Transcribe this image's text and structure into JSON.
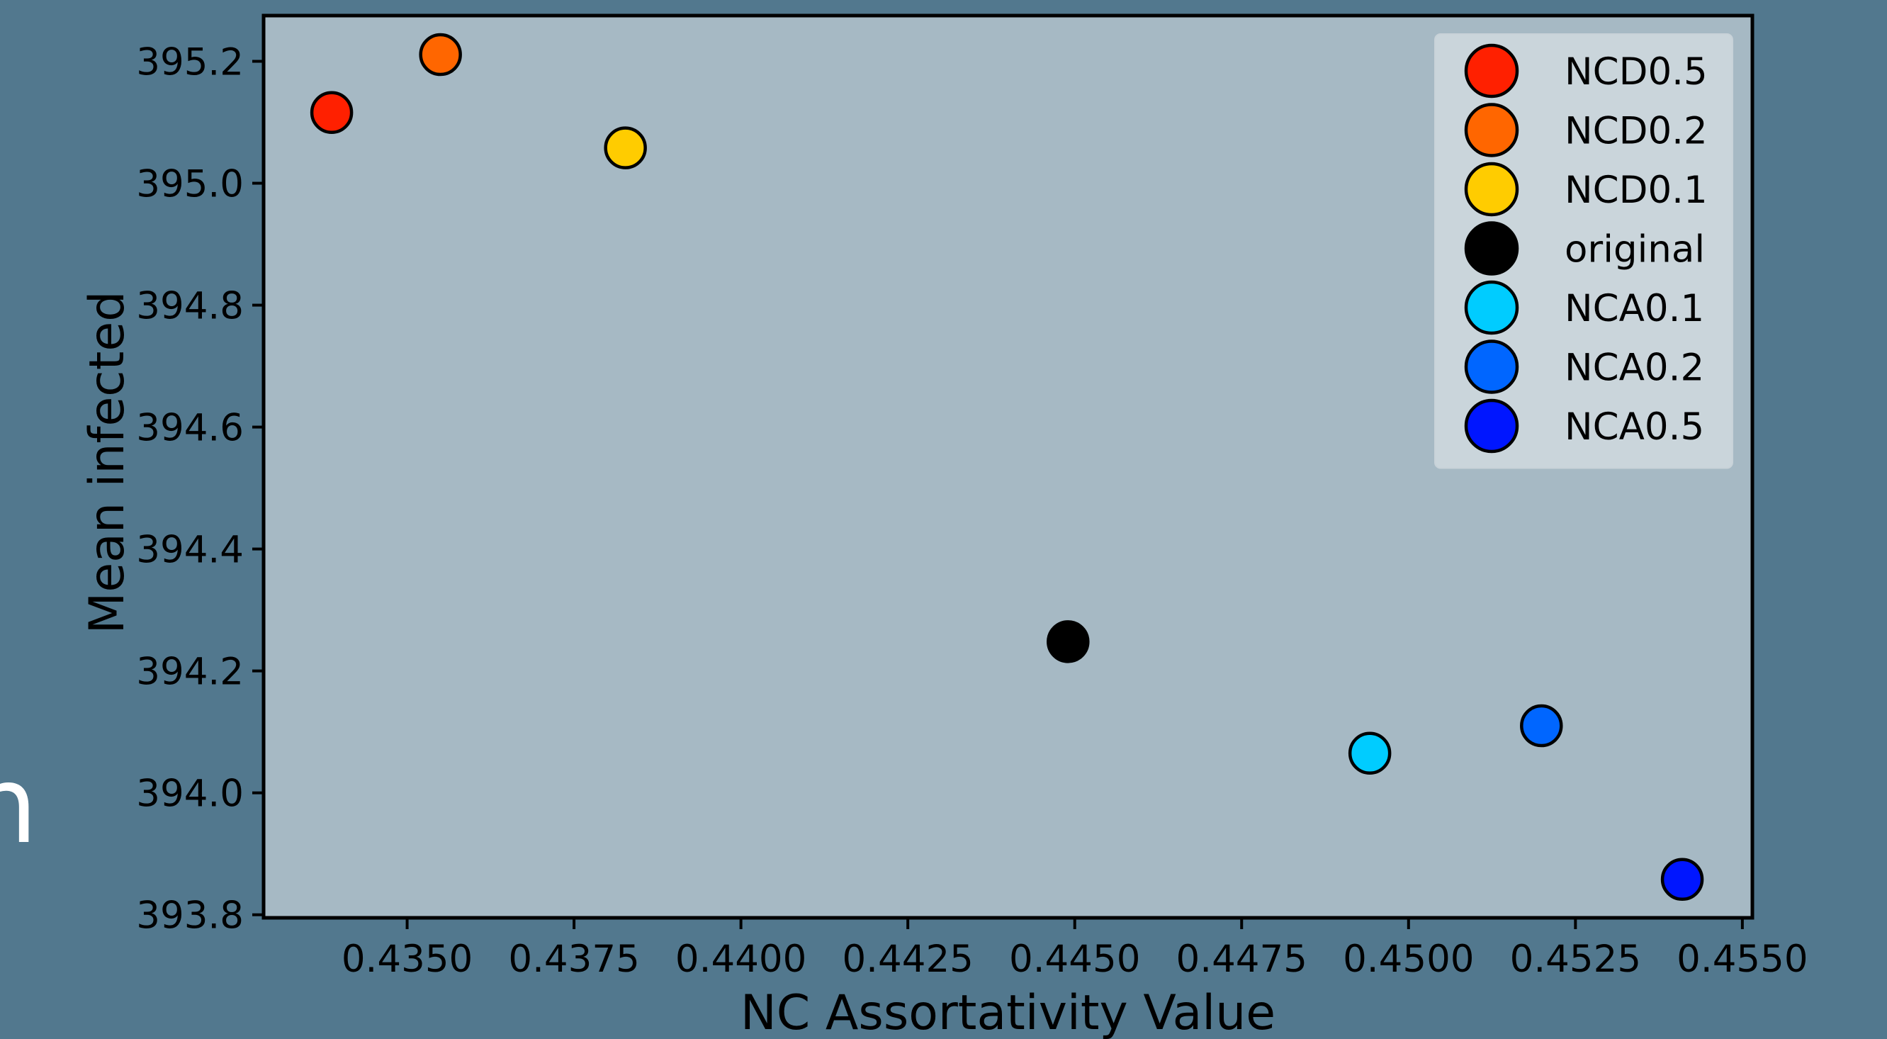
{
  "colors": {
    "page_background": "#52788e",
    "plot_background": "#a6b9c4",
    "legend_background": "#d0d9df",
    "marker_edge": "#000000"
  },
  "edge_glyph": "n",
  "chart_data": {
    "type": "scatter",
    "title": "",
    "xlabel": "NC Assortativity Value",
    "ylabel": "Mean infected",
    "xlim": [
      0.43285,
      0.45515
    ],
    "ylim": [
      393.795,
      395.275
    ],
    "xticks": [
      0.435,
      0.4375,
      0.44,
      0.4425,
      0.445,
      0.4475,
      0.45,
      0.4525,
      0.455
    ],
    "xtick_labels": [
      "0.4350",
      "0.4375",
      "0.4400",
      "0.4425",
      "0.4450",
      "0.4475",
      "0.4500",
      "0.4525",
      "0.4550"
    ],
    "yticks": [
      393.8,
      394.0,
      394.2,
      394.4,
      394.6,
      394.8,
      395.0,
      395.2
    ],
    "ytick_labels": [
      "393.8",
      "394.0",
      "394.2",
      "394.4",
      "394.6",
      "394.8",
      "395.0",
      "395.2"
    ],
    "grid": false,
    "legend_position": "top-right",
    "series": [
      {
        "name": "NCD0.5",
        "color": "#ff2000",
        "x": 0.43387,
        "y": 395.116
      },
      {
        "name": "NCD0.2",
        "color": "#ff6600",
        "x": 0.4355,
        "y": 395.211
      },
      {
        "name": "NCD0.1",
        "color": "#ffcc00",
        "x": 0.43827,
        "y": 395.058
      },
      {
        "name": "original",
        "color": "#000000",
        "x": 0.4449,
        "y": 394.248
      },
      {
        "name": "NCA0.1",
        "color": "#00ccff",
        "x": 0.44942,
        "y": 394.065
      },
      {
        "name": "NCA0.2",
        "color": "#0066ff",
        "x": 0.45199,
        "y": 394.11
      },
      {
        "name": "NCA0.5",
        "color": "#0016ff",
        "x": 0.4541,
        "y": 393.858
      }
    ]
  }
}
